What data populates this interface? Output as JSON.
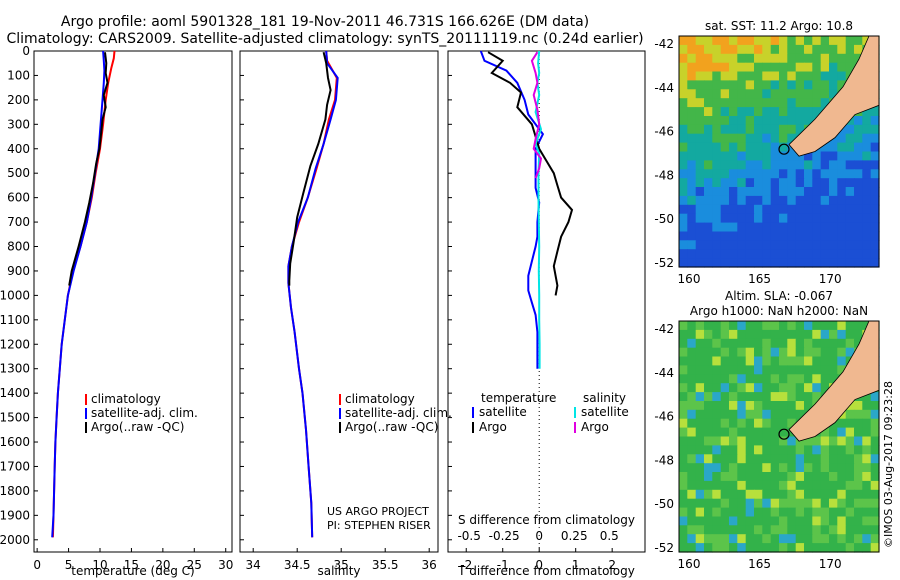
{
  "header": {
    "line1": "Argo profile: aoml 5901328_181 19-Nov-2011 46.731S 166.626E (DM data)",
    "line2": "Climatology: CARS2009. Satellite-adjusted climatology: synTS_20111119.nc (0.24d earlier)"
  },
  "credits": {
    "project": "US ARGO PROJECT",
    "pi": "PI: STEPHEN RISER",
    "imos": "©IMOS 03-Aug-2017 09:23:28"
  },
  "colors": {
    "climatology": "#ff0000",
    "satellite": "#0000ff",
    "argo": "#000000",
    "s_satellite": "#00e5e5",
    "s_argo": "#e000e0",
    "land": "#f0b890",
    "ocean_green": "#33b24a"
  },
  "map_labels": {
    "sst": "sat. SST: 11.2 Argo: 10.8",
    "sla_line1": "Altim. SLA: -0.067",
    "sla_line2": "Argo h1000: NaN h2000: NaN",
    "lat_ticks": [
      "-42",
      "-44",
      "-46",
      "-48",
      "-50",
      "-52"
    ],
    "lon_ticks": [
      "160",
      "165",
      "170"
    ]
  },
  "chart_data": [
    {
      "type": "line",
      "xlabel": "temperature (deg C)",
      "ylabel": "",
      "xlim": [
        -0.5,
        31
      ],
      "ylim": [
        2050,
        0
      ],
      "x_ticks": [
        0,
        5,
        10,
        15,
        20,
        25,
        30
      ],
      "y_ticks": [
        0,
        100,
        200,
        300,
        400,
        500,
        600,
        700,
        800,
        900,
        1000,
        1100,
        1200,
        1300,
        1400,
        1500,
        1600,
        1700,
        1800,
        1900,
        2000
      ],
      "legend": [
        "climatology",
        "satellite-adj. clim.",
        "Argo(..raw -QC)"
      ],
      "series": [
        {
          "name": "climatology",
          "color": "#ff0000",
          "points": [
            [
              12.3,
              0
            ],
            [
              12.2,
              30
            ],
            [
              11.8,
              70
            ],
            [
              11.3,
              130
            ],
            [
              10.9,
              200
            ],
            [
              10.5,
              300
            ],
            [
              10.0,
              400
            ],
            [
              9.3,
              500
            ],
            [
              8.7,
              600
            ],
            [
              7.9,
              700
            ],
            [
              6.9,
              800
            ],
            [
              5.7,
              900
            ],
            [
              4.9,
              1000
            ],
            [
              4.4,
              1100
            ],
            [
              3.9,
              1200
            ],
            [
              3.6,
              1300
            ],
            [
              3.3,
              1400
            ],
            [
              3.1,
              1500
            ],
            [
              2.9,
              1600
            ],
            [
              2.8,
              1700
            ],
            [
              2.7,
              1800
            ],
            [
              2.6,
              1900
            ],
            [
              2.5,
              1990
            ]
          ]
        },
        {
          "name": "satellite-adj. clim.",
          "color": "#0000ff",
          "points": [
            [
              10.5,
              0
            ],
            [
              10.6,
              40
            ],
            [
              10.7,
              80
            ],
            [
              10.6,
              130
            ],
            [
              10.4,
              200
            ],
            [
              10.1,
              300
            ],
            [
              9.8,
              400
            ],
            [
              9.2,
              500
            ],
            [
              8.6,
              600
            ],
            [
              7.9,
              700
            ],
            [
              6.9,
              800
            ],
            [
              5.8,
              900
            ],
            [
              4.9,
              1000
            ],
            [
              4.4,
              1100
            ],
            [
              3.9,
              1200
            ],
            [
              3.6,
              1300
            ],
            [
              3.3,
              1400
            ],
            [
              3.1,
              1500
            ],
            [
              2.9,
              1600
            ],
            [
              2.8,
              1700
            ],
            [
              2.7,
              1800
            ],
            [
              2.6,
              1900
            ],
            [
              2.4,
              1990
            ]
          ]
        },
        {
          "name": "Argo(..raw -QC)",
          "color": "#000000",
          "points": [
            [
              10.8,
              5
            ],
            [
              11.0,
              50
            ],
            [
              10.9,
              90
            ],
            [
              11.2,
              130
            ],
            [
              10.6,
              180
            ],
            [
              10.9,
              230
            ],
            [
              10.4,
              280
            ],
            [
              10.2,
              330
            ],
            [
              9.9,
              400
            ],
            [
              9.4,
              460
            ],
            [
              8.9,
              540
            ],
            [
              8.3,
              620
            ],
            [
              7.6,
              700
            ],
            [
              6.6,
              800
            ],
            [
              5.5,
              900
            ],
            [
              5.1,
              960
            ]
          ]
        }
      ]
    },
    {
      "type": "line",
      "xlabel": "salinity",
      "ylabel": "",
      "xlim": [
        33.85,
        36.1
      ],
      "ylim": [
        2050,
        0
      ],
      "x_ticks": [
        34,
        34.5,
        35,
        35.5,
        36
      ],
      "legend": [
        "climatology",
        "satellite-adj. clim.",
        "Argo(..raw -QC)"
      ],
      "series": [
        {
          "name": "climatology",
          "color": "#ff0000",
          "points": [
            [
              34.83,
              0
            ],
            [
              34.84,
              40
            ],
            [
              34.95,
              110
            ],
            [
              34.93,
              200
            ],
            [
              34.86,
              280
            ],
            [
              34.8,
              380
            ],
            [
              34.72,
              480
            ],
            [
              34.62,
              600
            ],
            [
              34.52,
              700
            ],
            [
              34.44,
              800
            ],
            [
              34.4,
              880
            ],
            [
              34.4,
              950
            ],
            [
              34.43,
              1050
            ],
            [
              34.47,
              1150
            ],
            [
              34.52,
              1300
            ],
            [
              34.56,
              1400
            ],
            [
              34.6,
              1550
            ],
            [
              34.63,
              1700
            ],
            [
              34.66,
              1850
            ],
            [
              34.67,
              1990
            ]
          ]
        },
        {
          "name": "satellite-adj. clim.",
          "color": "#0000ff",
          "points": [
            [
              34.83,
              0
            ],
            [
              34.84,
              50
            ],
            [
              34.96,
              110
            ],
            [
              34.94,
              200
            ],
            [
              34.88,
              280
            ],
            [
              34.8,
              380
            ],
            [
              34.71,
              480
            ],
            [
              34.62,
              600
            ],
            [
              34.51,
              700
            ],
            [
              34.44,
              800
            ],
            [
              34.4,
              880
            ],
            [
              34.4,
              950
            ],
            [
              34.43,
              1050
            ],
            [
              34.47,
              1150
            ],
            [
              34.52,
              1300
            ],
            [
              34.56,
              1400
            ],
            [
              34.6,
              1550
            ],
            [
              34.63,
              1700
            ],
            [
              34.66,
              1850
            ],
            [
              34.67,
              1990
            ]
          ]
        },
        {
          "name": "Argo(..raw -QC)",
          "color": "#000000",
          "points": [
            [
              34.8,
              5
            ],
            [
              34.83,
              50
            ],
            [
              34.85,
              110
            ],
            [
              34.88,
              160
            ],
            [
              34.84,
              220
            ],
            [
              34.82,
              280
            ],
            [
              34.74,
              380
            ],
            [
              34.65,
              470
            ],
            [
              34.57,
              580
            ],
            [
              34.5,
              680
            ],
            [
              34.46,
              780
            ],
            [
              34.42,
              870
            ],
            [
              34.41,
              940
            ],
            [
              34.41,
              960
            ]
          ]
        }
      ]
    },
    {
      "type": "line",
      "xlabel": "T difference from climatology",
      "title": "S difference from climatology",
      "xlim": [
        -2.5,
        2.9
      ],
      "ylim": [
        2050,
        0
      ],
      "x_ticks": [
        -2,
        -1,
        0,
        1,
        2
      ],
      "s_ticks": [
        "-0.5",
        "-0.25",
        "0",
        "0.25",
        "0.5"
      ],
      "legend": {
        "temperature_title": "temperature",
        "salinity_title": "salinity",
        "items": [
          "satellite",
          "Argo",
          "satellite",
          "Argo"
        ]
      },
      "series": [
        {
          "name": "satellite",
          "color": "#0000ff",
          "points": [
            [
              -1.6,
              0
            ],
            [
              -1.5,
              40
            ],
            [
              -0.9,
              80
            ],
            [
              -0.6,
              130
            ],
            [
              -0.4,
              200
            ],
            [
              -0.3,
              260
            ],
            [
              0.1,
              340
            ],
            [
              -0.1,
              400
            ],
            [
              -0.1,
              450
            ],
            [
              -0.1,
              500
            ],
            [
              -0.1,
              560
            ],
            [
              0,
              620
            ],
            [
              -0.05,
              700
            ],
            [
              -0.05,
              760
            ],
            [
              -0.1,
              800
            ],
            [
              -0.2,
              860
            ],
            [
              -0.3,
              920
            ],
            [
              -0.3,
              980
            ],
            [
              -0.2,
              1030
            ],
            [
              -0.1,
              1080
            ],
            [
              -0.05,
              1150
            ],
            [
              -0.05,
              1300
            ]
          ]
        },
        {
          "name": "Argo",
          "color": "#000000",
          "points": [
            [
              -1.4,
              5
            ],
            [
              -1.0,
              40
            ],
            [
              -1.3,
              90
            ],
            [
              -0.8,
              130
            ],
            [
              -0.5,
              170
            ],
            [
              -0.6,
              230
            ],
            [
              -0.2,
              300
            ],
            [
              -0.1,
              350
            ],
            [
              0,
              400
            ],
            [
              0.2,
              450
            ],
            [
              0.4,
              500
            ],
            [
              0.5,
              550
            ],
            [
              0.6,
              600
            ],
            [
              0.9,
              650
            ],
            [
              0.8,
              700
            ],
            [
              0.6,
              760
            ],
            [
              0.5,
              820
            ],
            [
              0.4,
              880
            ],
            [
              0.5,
              960
            ],
            [
              0.45,
              1000
            ]
          ]
        },
        {
          "name": "satellite",
          "color": "#00e5e5",
          "points": [
            [
              0,
              0
            ],
            [
              -0.03,
              50
            ],
            [
              0,
              90
            ],
            [
              -0.05,
              130
            ],
            [
              0,
              180
            ],
            [
              -0.1,
              250
            ],
            [
              0.05,
              320
            ],
            [
              -0.1,
              380
            ],
            [
              0,
              420
            ],
            [
              -0.02,
              500
            ],
            [
              -0.02,
              600
            ],
            [
              -0.01,
              700
            ],
            [
              0,
              800
            ],
            [
              -0.01,
              900
            ],
            [
              0,
              1000
            ],
            [
              0,
              1100
            ],
            [
              0.01,
              1200
            ],
            [
              0.01,
              1300
            ]
          ]
        },
        {
          "name": "Argo",
          "color": "#e000e0",
          "points": [
            [
              -0.05,
              5
            ],
            [
              -0.2,
              40
            ],
            [
              -0.1,
              90
            ],
            [
              -0.05,
              130
            ],
            [
              -0.15,
              180
            ],
            [
              -0.05,
              240
            ],
            [
              0,
              300
            ],
            [
              -0.1,
              360
            ],
            [
              -0.15,
              400
            ],
            [
              0.05,
              440
            ],
            [
              0,
              480
            ],
            [
              -0.1,
              520
            ]
          ]
        }
      ]
    }
  ]
}
